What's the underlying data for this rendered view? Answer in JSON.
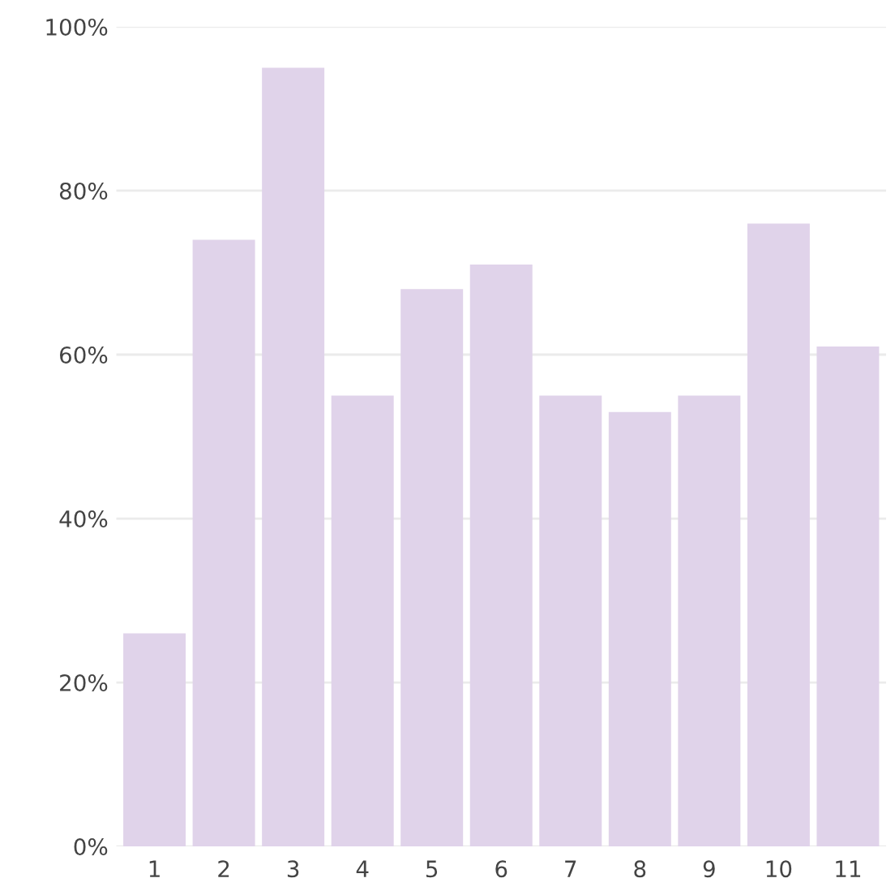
{
  "chart_data": {
    "type": "bar",
    "categories": [
      "1",
      "2",
      "3",
      "4",
      "5",
      "6",
      "7",
      "8",
      "9",
      "10",
      "11"
    ],
    "values": [
      26,
      74,
      95,
      55,
      68,
      71,
      55,
      53,
      55,
      76,
      61
    ],
    "color": "#e0d3ea",
    "ylim": [
      0,
      100
    ],
    "yticks": [
      {
        "value": 0,
        "label": "0%"
      },
      {
        "value": 20,
        "label": "20%"
      },
      {
        "value": 40,
        "label": "40%"
      },
      {
        "value": 60,
        "label": "60%"
      },
      {
        "value": 80,
        "label": "80%"
      },
      {
        "value": 100,
        "label": "100%"
      }
    ],
    "grid": "y"
  }
}
